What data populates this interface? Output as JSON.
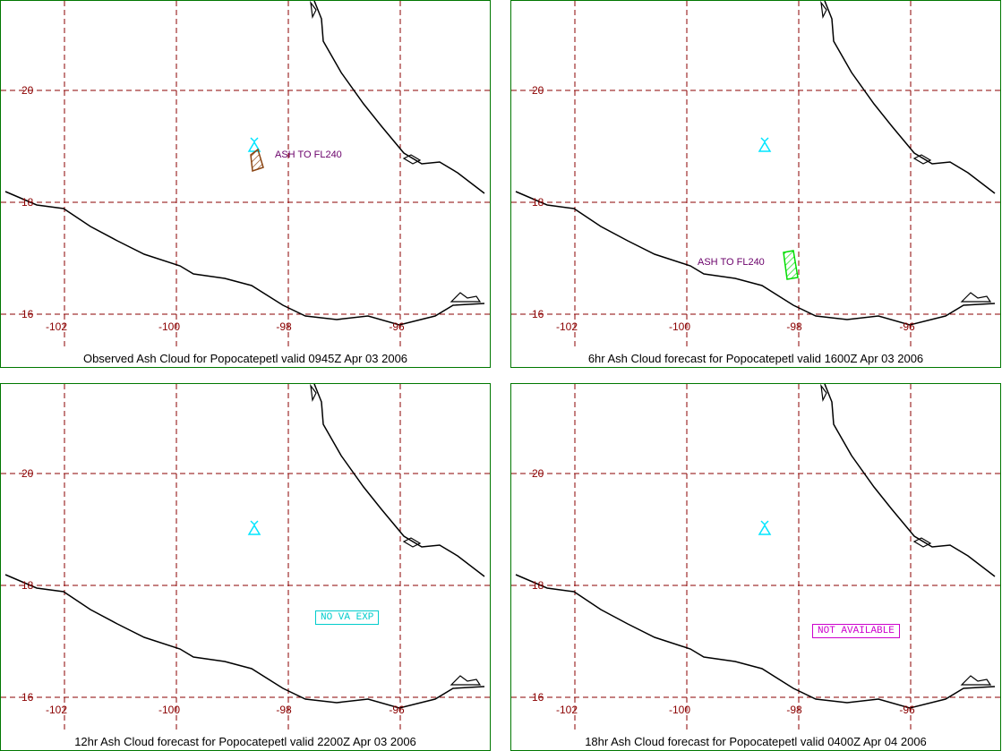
{
  "colors": {
    "grid": "#8b0000",
    "tick_label": "#8b0000",
    "coast": "#000000",
    "volcano": "#00e5ff",
    "obs_ash": "#8b4513",
    "fcst_ash": "#00dd00",
    "ash_label": "#6a006a",
    "no_va": "#00cccc",
    "not_available": "#cc00cc",
    "frame": "#007700"
  },
  "volcano_icon": "volcano-triangle-icon",
  "axes": {
    "lat_labels": [
      "20",
      "18",
      "16"
    ],
    "lon_labels": [
      "-102",
      "-100",
      "-98",
      "-96"
    ]
  },
  "panels": [
    {
      "caption": "Observed Ash Cloud for Popocatepetl valid 0945Z Apr 03 2006",
      "ash": {
        "label": "ASH TO FL240",
        "kind": "observed"
      },
      "status": null
    },
    {
      "caption": "6hr Ash Cloud forecast for Popocatepetl valid 1600Z Apr 03 2006",
      "ash": {
        "label": "ASH TO FL240",
        "kind": "forecast"
      },
      "status": null
    },
    {
      "caption": "12hr Ash Cloud forecast for Popocatepetl valid 2200Z Apr 03 2006",
      "ash": null,
      "status": "NO VA EXP"
    },
    {
      "caption": "18hr Ash Cloud forecast for Popocatepetl valid 0400Z Apr 04 2006",
      "ash": null,
      "status": "NOT AVAILABLE"
    }
  ]
}
